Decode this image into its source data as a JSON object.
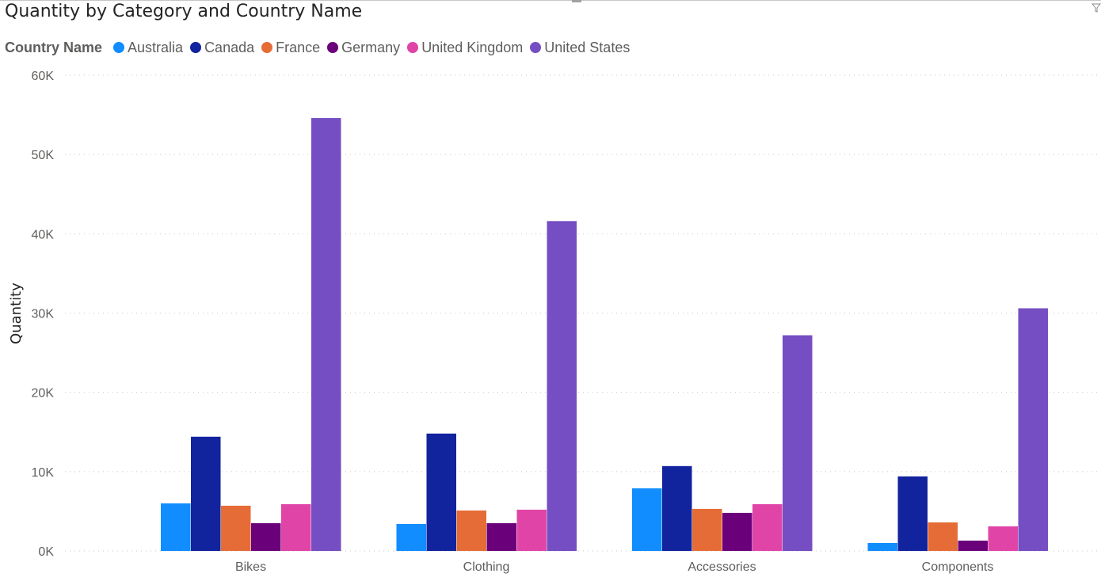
{
  "chart_data": {
    "type": "bar",
    "title": "Quantity by Category and Country Name",
    "xlabel": "",
    "ylabel": "Quantity",
    "legend_title": "Country Name",
    "legend_position": "top-left",
    "grid": true,
    "ylim": [
      0,
      60000
    ],
    "yticks": [
      0,
      10000,
      20000,
      30000,
      40000,
      50000,
      60000
    ],
    "ytick_labels": [
      "0K",
      "10K",
      "20K",
      "30K",
      "40K",
      "50K",
      "60K"
    ],
    "categories": [
      "Bikes",
      "Clothing",
      "Accessories",
      "Components"
    ],
    "series": [
      {
        "name": "Australia",
        "color": "#118DFF",
        "values": [
          6000,
          3400,
          7900,
          1000
        ]
      },
      {
        "name": "Canada",
        "color": "#12239E",
        "values": [
          14400,
          14800,
          10700,
          9400
        ]
      },
      {
        "name": "France",
        "color": "#E66C37",
        "values": [
          5700,
          5100,
          5300,
          3600
        ]
      },
      {
        "name": "Germany",
        "color": "#6B007B",
        "values": [
          3500,
          3500,
          4800,
          1300
        ]
      },
      {
        "name": "United Kingdom",
        "color": "#E044A7",
        "values": [
          5900,
          5200,
          5900,
          3100
        ]
      },
      {
        "name": "United States",
        "color": "#744EC2",
        "values": [
          54600,
          41600,
          27200,
          30600
        ]
      }
    ]
  }
}
